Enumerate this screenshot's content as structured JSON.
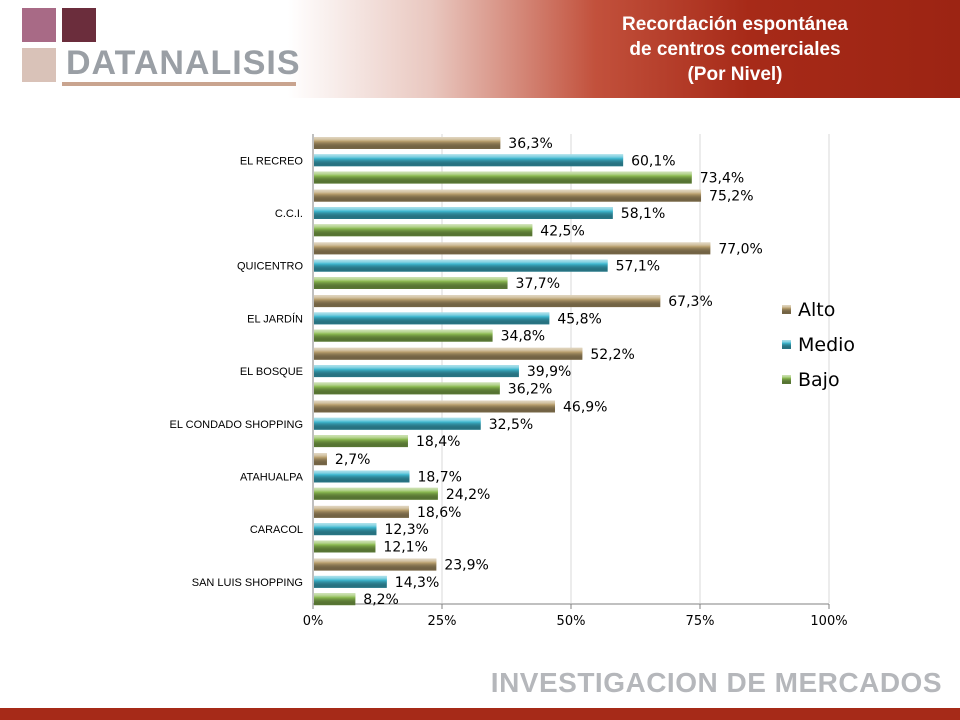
{
  "brand": {
    "name": "DATANALISIS"
  },
  "title": {
    "line1": "Recordación espontánea",
    "line2": "de centros comerciales",
    "line3": "(Por Nivel)"
  },
  "footer": {
    "text": "INVESTIGACION DE MERCADOS"
  },
  "colors": {
    "alto": "#b9a06e",
    "medio": "#3fb8d0",
    "bajo": "#8cbb52",
    "header_dark": "#9c2413",
    "footer_bar": "#a62a18"
  },
  "chart_data": {
    "type": "bar",
    "orientation": "horizontal",
    "categories": [
      "EL RECREO",
      "C.C.I.",
      "QUICENTRO",
      "EL JARDÍN",
      "EL BOSQUE",
      "EL CONDADO SHOPPING",
      "ATAHUALPA",
      "CARACOL",
      "SAN LUIS SHOPPING"
    ],
    "series": [
      {
        "name": "Alto",
        "values": [
          36.3,
          75.2,
          77.0,
          67.3,
          52.2,
          46.9,
          2.7,
          18.6,
          23.9
        ],
        "labels": [
          "36,3%",
          "75,2%",
          "77,0%",
          "67,3%",
          "52,2%",
          "46,9%",
          "2,7%",
          "18,6%",
          "23,9%"
        ]
      },
      {
        "name": "Medio",
        "values": [
          60.1,
          58.1,
          57.1,
          45.8,
          39.9,
          32.5,
          18.7,
          12.3,
          14.3
        ],
        "labels": [
          "60,1%",
          "58,1%",
          "57,1%",
          "45,8%",
          "39,9%",
          "32,5%",
          "18,7%",
          "12,3%",
          "14,3%"
        ]
      },
      {
        "name": "Bajo",
        "values": [
          73.4,
          42.5,
          37.7,
          34.8,
          36.2,
          18.4,
          24.2,
          12.1,
          8.2
        ],
        "labels": [
          "73,4%",
          "42,5%",
          "37,7%",
          "34,8%",
          "36,2%",
          "18,4%",
          "24,2%",
          "12,1%",
          "8,2%"
        ]
      }
    ],
    "xlim": [
      0,
      100
    ],
    "x_ticks": [
      0,
      25,
      50,
      75,
      100
    ],
    "x_tick_labels": [
      "0%",
      "25%",
      "50%",
      "75%",
      "100%"
    ],
    "grid": true,
    "legend": "right"
  }
}
